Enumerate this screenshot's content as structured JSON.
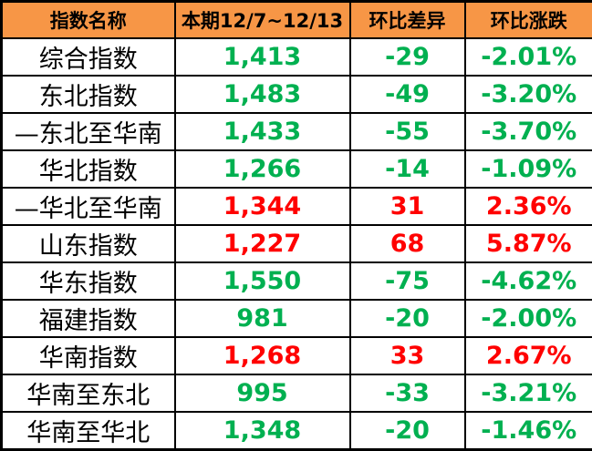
{
  "colors": {
    "header_bg": "#F79646",
    "up": "#FF0000",
    "down": "#00B050",
    "border": "#000000"
  },
  "chart_data": {
    "type": "table",
    "columns": [
      "指数名称",
      "本期12/7~12/13",
      "环比差异",
      "环比涨跌"
    ],
    "rows": [
      {
        "name": "综合指数",
        "current_display": "1,413",
        "current": 1413,
        "diff_display": "-29",
        "diff": -29,
        "change_display": "-2.01%",
        "change_pct": -2.01,
        "trend": "down"
      },
      {
        "name": "东北指数",
        "current_display": "1,483",
        "current": 1483,
        "diff_display": "-49",
        "diff": -49,
        "change_display": "-3.20%",
        "change_pct": -3.2,
        "trend": "down"
      },
      {
        "name": "—东北至华南",
        "current_display": "1,433",
        "current": 1433,
        "diff_display": "-55",
        "diff": -55,
        "change_display": "-3.70%",
        "change_pct": -3.7,
        "trend": "down"
      },
      {
        "name": "华北指数",
        "current_display": "1,266",
        "current": 1266,
        "diff_display": "-14",
        "diff": -14,
        "change_display": "-1.09%",
        "change_pct": -1.09,
        "trend": "down"
      },
      {
        "name": "—华北至华南",
        "current_display": "1,344",
        "current": 1344,
        "diff_display": "31",
        "diff": 31,
        "change_display": "2.36%",
        "change_pct": 2.36,
        "trend": "up"
      },
      {
        "name": "山东指数",
        "current_display": "1,227",
        "current": 1227,
        "diff_display": "68",
        "diff": 68,
        "change_display": "5.87%",
        "change_pct": 5.87,
        "trend": "up"
      },
      {
        "name": "华东指数",
        "current_display": "1,550",
        "current": 1550,
        "diff_display": "-75",
        "diff": -75,
        "change_display": "-4.62%",
        "change_pct": -4.62,
        "trend": "down"
      },
      {
        "name": "福建指数",
        "current_display": "981",
        "current": 981,
        "diff_display": "-20",
        "diff": -20,
        "change_display": "-2.00%",
        "change_pct": -2.0,
        "trend": "down"
      },
      {
        "name": "华南指数",
        "current_display": "1,268",
        "current": 1268,
        "diff_display": "33",
        "diff": 33,
        "change_display": "2.67%",
        "change_pct": 2.67,
        "trend": "up"
      },
      {
        "name": "华南至东北",
        "current_display": "995",
        "current": 995,
        "diff_display": "-33",
        "diff": -33,
        "change_display": "-3.21%",
        "change_pct": -3.21,
        "trend": "down"
      },
      {
        "name": "华南至华北",
        "current_display": "1,348",
        "current": 1348,
        "diff_display": "-20",
        "diff": -20,
        "change_display": "-1.46%",
        "change_pct": -1.46,
        "trend": "down"
      }
    ]
  }
}
